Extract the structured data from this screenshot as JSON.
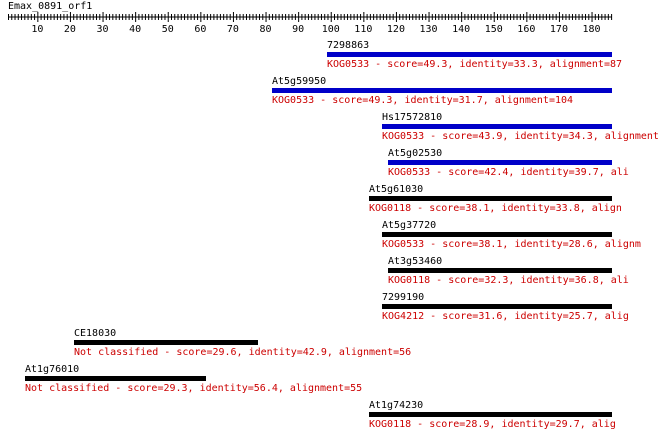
{
  "query": {
    "name": "Emax_0891_orf1"
  },
  "ruler": {
    "ticks": [
      "10",
      "20",
      "30",
      "40",
      "50",
      "60",
      "70",
      "80",
      "90",
      "100",
      "110",
      "120",
      "130",
      "140",
      "150",
      "160",
      "170",
      "180"
    ]
  },
  "colors": {
    "bar_blue": "#0000c8",
    "bar_black": "#000000",
    "desc_red": "#cc0000"
  },
  "hits": [
    {
      "name": "7298863",
      "kog": "KOG0533",
      "score": "49.3",
      "identity": "33.3",
      "alignment": "87",
      "color": "blue",
      "desc": "KOG0533 - score=49.3, identity=33.3, alignment=87"
    },
    {
      "name": "At5g59950",
      "kog": "KOG0533",
      "score": "49.3",
      "identity": "31.7",
      "alignment": "104",
      "color": "blue",
      "desc": "KOG0533 - score=49.3, identity=31.7, alignment=104"
    },
    {
      "name": "Hs17572810",
      "kog": "KOG0533",
      "score": "43.9",
      "identity": "34.3",
      "alignment": "",
      "color": "blue",
      "desc": "KOG0533 - score=43.9, identity=34.3, alignment"
    },
    {
      "name": "At5g02530",
      "kog": "KOG0533",
      "score": "42.4",
      "identity": "39.7",
      "alignment": "",
      "color": "blue",
      "desc": "KOG0533 - score=42.4, identity=39.7, ali"
    },
    {
      "name": "At5g61030",
      "kog": "KOG0118",
      "score": "38.1",
      "identity": "33.8",
      "alignment": "",
      "color": "black",
      "desc": "KOG0118 - score=38.1, identity=33.8, align"
    },
    {
      "name": "At5g37720",
      "kog": "KOG0533",
      "score": "38.1",
      "identity": "28.6",
      "alignment": "",
      "color": "black",
      "desc": "KOG0533 - score=38.1, identity=28.6, alignm"
    },
    {
      "name": "At3g53460",
      "kog": "KOG0118",
      "score": "32.3",
      "identity": "36.8",
      "alignment": "",
      "color": "black",
      "desc": "KOG0118 - score=32.3, identity=36.8, ali"
    },
    {
      "name": "7299190",
      "kog": "KOG4212",
      "score": "31.6",
      "identity": "25.7",
      "alignment": "",
      "color": "black",
      "desc": "KOG4212 - score=31.6, identity=25.7, alig"
    },
    {
      "name": "CE18030",
      "kog": "Not classified",
      "score": "29.6",
      "identity": "42.9",
      "alignment": "56",
      "color": "black",
      "desc": "Not classified - score=29.6, identity=42.9, alignment=56"
    },
    {
      "name": "At1g76010",
      "kog": "Not classified",
      "score": "29.3",
      "identity": "56.4",
      "alignment": "55",
      "color": "black",
      "desc": "Not classified - score=29.3, identity=56.4, alignment=55"
    },
    {
      "name": "At1g74230",
      "kog": "KOG0118",
      "score": "28.9",
      "identity": "29.7",
      "alignment": "",
      "color": "black",
      "desc": "KOG0118 - score=28.9, identity=29.7, alig"
    }
  ]
}
